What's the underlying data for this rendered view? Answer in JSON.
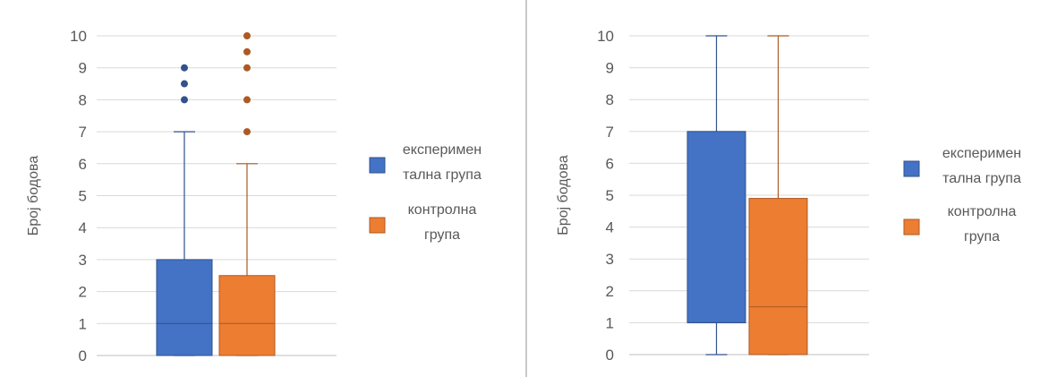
{
  "chart_data": [
    {
      "type": "boxplot",
      "ylabel": "Број бодова",
      "ylim": [
        0,
        10
      ],
      "yticks": [
        "0",
        "1",
        "2",
        "3",
        "4",
        "5",
        "6",
        "7",
        "8",
        "9",
        "10"
      ],
      "grid": true,
      "legend_position": "right",
      "series": [
        {
          "name": "експериментална група",
          "legend_lines": [
            "експеримен",
            "тална група"
          ],
          "color": "#4472C4",
          "min": 0,
          "q1": 0,
          "median": 1,
          "q3": 3,
          "max": 7,
          "outliers": [
            8,
            8.5,
            9
          ]
        },
        {
          "name": "контролна група",
          "legend_lines": [
            "контролна",
            "група"
          ],
          "color": "#ED7D31",
          "min": 0,
          "q1": 0,
          "median": 1,
          "q3": 2.5,
          "max": 6,
          "outliers": [
            7,
            8,
            9,
            9.5,
            10
          ]
        }
      ]
    },
    {
      "type": "boxplot",
      "ylabel": "Број бодова",
      "ylim": [
        0,
        10
      ],
      "yticks": [
        "0",
        "1",
        "2",
        "3",
        "4",
        "5",
        "6",
        "7",
        "8",
        "9",
        "10"
      ],
      "grid": true,
      "legend_position": "right",
      "series": [
        {
          "name": "експериментална група",
          "legend_lines": [
            "експеримен",
            "тална група"
          ],
          "color": "#4472C4",
          "min": 0,
          "q1": 1,
          "median": 1,
          "q3": 7,
          "max": 10,
          "outliers": []
        },
        {
          "name": "контролна група",
          "legend_lines": [
            "контролна",
            "група"
          ],
          "color": "#ED7D31",
          "min": 0,
          "q1": 0,
          "median": 1.5,
          "q3": 4.9,
          "max": 10,
          "outliers": []
        }
      ]
    }
  ]
}
